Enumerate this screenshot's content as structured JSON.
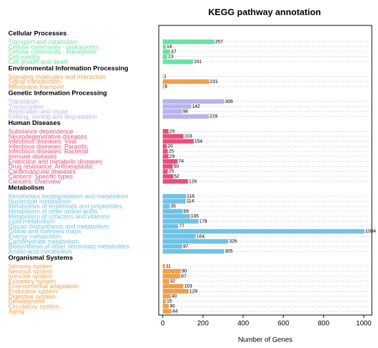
{
  "chart_data": {
    "type": "bar",
    "orientation": "horizontal",
    "title": "KEGG pathway annotation",
    "xlabel": "Number of Genes",
    "ylabel": "",
    "xlim": [
      -20,
      1040
    ],
    "xticks": [
      0,
      200,
      400,
      600,
      800,
      1000
    ],
    "grid": "dotted horizontal lines at each category",
    "legend": "none",
    "groups": [
      {
        "name": "Cellular Processes",
        "color": "#69e3a0",
        "categories": [
          {
            "label": "Transport and catabolism",
            "value": 257
          },
          {
            "label": "Cellular community - prokaryotes",
            "value": 16
          },
          {
            "label": "Cellular community - eukaryotes",
            "value": 37
          },
          {
            "label": "Cell motility",
            "value": 23
          },
          {
            "label": "Cell growth and death",
            "value": 151
          }
        ]
      },
      {
        "name": "Environmental Information Processing",
        "color": "#f0a04b",
        "categories": [
          {
            "label": "Signaling molecules and interaction",
            "value": 1
          },
          {
            "label": "Signal transduction",
            "value": 231
          },
          {
            "label": "Membrane transport",
            "value": 6
          }
        ]
      },
      {
        "name": "Genetic Information Processing",
        "color": "#b8b4ec",
        "categories": [
          {
            "label": "Translation",
            "value": 306
          },
          {
            "label": "Transcription",
            "value": 142
          },
          {
            "label": "Replication and repair",
            "value": 96
          },
          {
            "label": "Folding, sorting and degradation",
            "value": 229
          }
        ]
      },
      {
        "name": "Human Diseases",
        "color": "#e8507e",
        "categories": [
          {
            "label": "Substance dependence",
            "value": 29
          },
          {
            "label": "Neurodegenerative diseases",
            "value": 103
          },
          {
            "label": "Infectious diseases: Viral",
            "value": 154
          },
          {
            "label": "Infectious diseases: Parasitic",
            "value": 20
          },
          {
            "label": "Infectious diseases: Bacterial",
            "value": 25
          },
          {
            "label": "Immune diseases",
            "value": 29
          },
          {
            "label": "Endocrine and metabolic diseases",
            "value": 74
          },
          {
            "label": "Drug resistance: Antineoplastic",
            "value": 50
          },
          {
            "label": "Cardiovascular diseases",
            "value": 25
          },
          {
            "label": "Cancers: Specific types",
            "value": 52
          },
          {
            "label": "Cancers: Overview",
            "value": 126
          }
        ]
      },
      {
        "name": "Metabolism",
        "color": "#6ec3e6",
        "categories": [
          {
            "label": "Xenobiotics biodegradation and metabolism",
            "value": 116
          },
          {
            "label": "Nucleotide metabolism",
            "value": 114
          },
          {
            "label": "Metabolism of terpenoids and polyketides",
            "value": 35
          },
          {
            "label": "Metabolism of other amino acids",
            "value": 99
          },
          {
            "label": "Metabolism of cofactors and vitamins",
            "value": 135
          },
          {
            "label": "Lipid metabolism",
            "value": 178
          },
          {
            "label": "Glycan biosynthesis and metabolism",
            "value": 77
          },
          {
            "label": "Global and overview maps",
            "value": 1004
          },
          {
            "label": "Energy metabolism",
            "value": 164
          },
          {
            "label": "Carbohydrate metabolism",
            "value": 326
          },
          {
            "label": "Biosynthesis of other secondary metabolites",
            "value": 97
          },
          {
            "label": "Amino acid metabolism",
            "value": 305
          }
        ]
      },
      {
        "name": "Organismal Systems",
        "color": "#f0a04b",
        "categories": [
          {
            "label": "Sensory system",
            "value": 11
          },
          {
            "label": "Nervous system",
            "value": 90
          },
          {
            "label": "Immune system",
            "value": 87
          },
          {
            "label": "Excretory system",
            "value": 32
          },
          {
            "label": "Environmental adaptation",
            "value": 103
          },
          {
            "label": "Endocrine system",
            "value": 129
          },
          {
            "label": "Digestive system",
            "value": 40
          },
          {
            "label": "Development",
            "value": 15
          },
          {
            "label": "Circulatory system",
            "value": 30
          },
          {
            "label": "Aging",
            "value": 44
          }
        ]
      }
    ]
  }
}
